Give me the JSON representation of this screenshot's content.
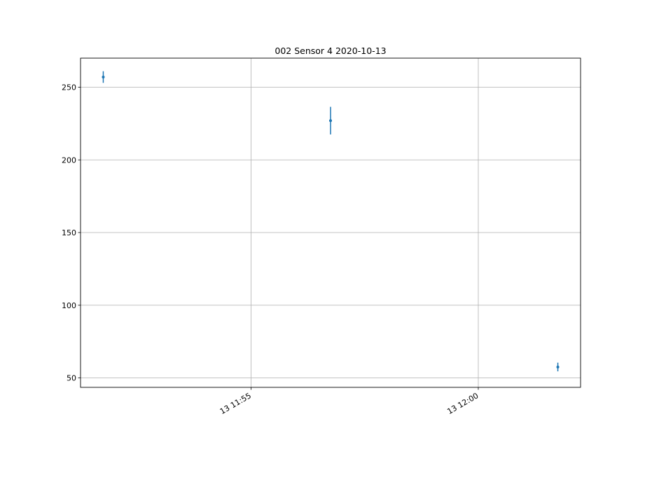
{
  "chart_data": {
    "type": "scatter",
    "title": "002 Sensor 4 2020-10-13",
    "xlabel": "",
    "ylabel": "",
    "x_axis": {
      "type": "time",
      "min": "2020-10-13 11:51:15",
      "max": "2020-10-13 12:02:15",
      "ticks": [
        {
          "value": "2020-10-13 11:55:00",
          "label": "13 11:55"
        },
        {
          "value": "2020-10-13 12:00:00",
          "label": "13 12:00"
        }
      ]
    },
    "y_axis": {
      "min": 43.5,
      "max": 270,
      "ticks": [
        {
          "value": 50,
          "label": "50"
        },
        {
          "value": 100,
          "label": "100"
        },
        {
          "value": 150,
          "label": "150"
        },
        {
          "value": 200,
          "label": "200"
        },
        {
          "value": 250,
          "label": "250"
        }
      ]
    },
    "grid": true,
    "series": [
      {
        "color": "#1f77b4",
        "points": [
          {
            "x": "2020-10-13 11:51:45",
            "y": 257,
            "err": 4
          },
          {
            "x": "2020-10-13 11:56:45",
            "y": 227,
            "err": 9.5
          },
          {
            "x": "2020-10-13 12:01:45",
            "y": 57.5,
            "err": 3
          }
        ]
      }
    ]
  }
}
